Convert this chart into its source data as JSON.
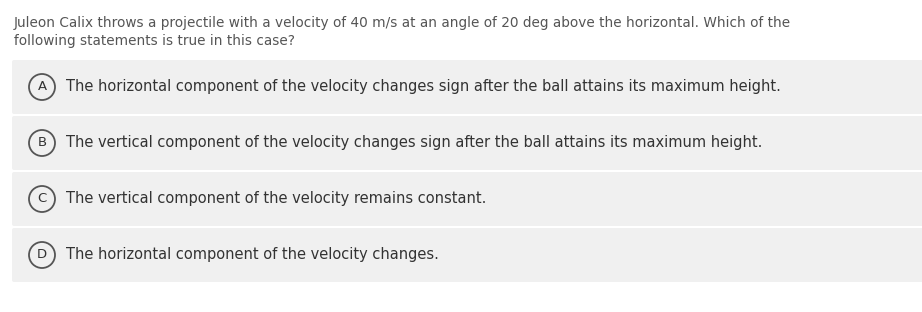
{
  "question_line1": "Juleon Calix throws a projectile with a velocity of 40 m/s at an angle of 20 deg above the horizontal. Which of the",
  "question_line2": "following statements is true in this case?",
  "options": [
    {
      "label": "A",
      "text": "The horizontal component of the velocity changes sign after the ball attains its maximum height."
    },
    {
      "label": "B",
      "text": "The vertical component of the velocity changes sign after the ball attains its maximum height."
    },
    {
      "label": "C",
      "text": "The vertical component of the velocity remains constant."
    },
    {
      "label": "D",
      "text": "The horizontal component of the velocity changes."
    }
  ],
  "bg_color": "#ffffff",
  "option_bg_color": "#f0f0f0",
  "question_color": "#555555",
  "option_text_color": "#333333",
  "circle_edge_color": "#555555",
  "circle_fill_color": "#f0f0f0",
  "question_fontsize": 9.8,
  "option_fontsize": 10.5,
  "label_fontsize": 9.5
}
